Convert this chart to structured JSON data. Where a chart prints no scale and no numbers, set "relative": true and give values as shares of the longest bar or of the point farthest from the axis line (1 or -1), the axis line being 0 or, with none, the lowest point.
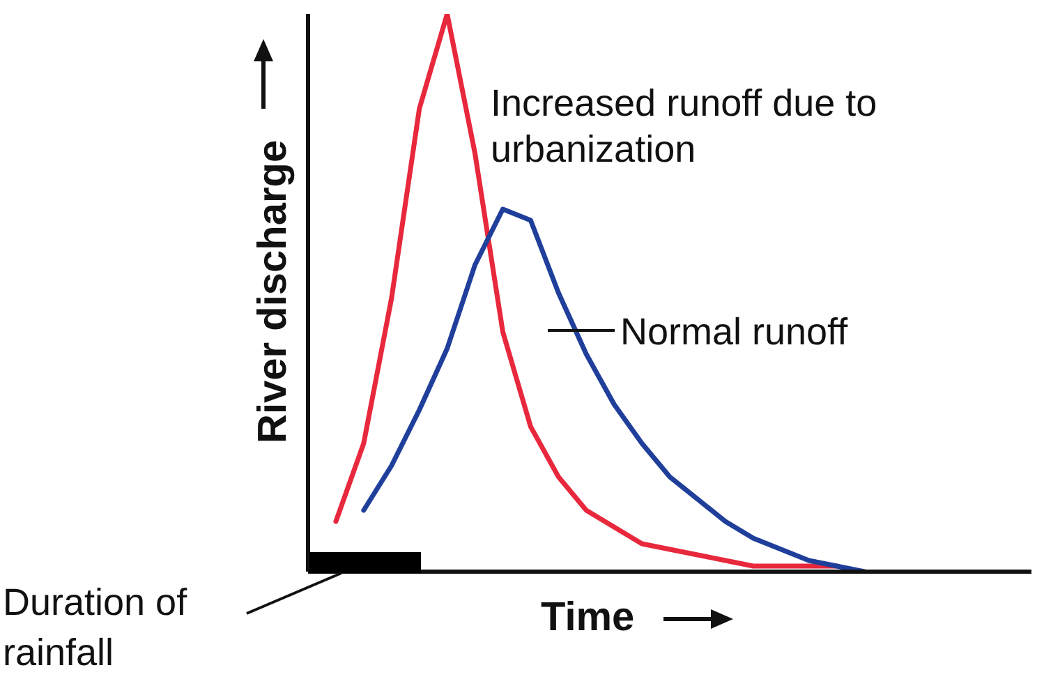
{
  "chart_data": {
    "type": "line",
    "relative": true,
    "xlabel": "Time",
    "ylabel": "River discharge",
    "categories": [
      null,
      null,
      null,
      null,
      null,
      null,
      null,
      null,
      null,
      null,
      null,
      null,
      null,
      null,
      null,
      null,
      null,
      null,
      null,
      null
    ],
    "series": [
      {
        "name": "Increased runoff due to urbanization",
        "color": "#e8283c",
        "values": [
          0.09,
          0.23,
          0.49,
          0.83,
          1.0,
          0.75,
          0.43,
          0.26,
          0.17,
          0.11,
          0.08,
          0.05,
          0.04,
          0.03,
          0.02,
          0.01,
          0.01,
          0.01,
          0.01,
          null
        ]
      },
      {
        "name": "Normal runoff",
        "color": "#1f3f9a",
        "values": [
          null,
          0.11,
          0.19,
          0.29,
          0.4,
          0.55,
          0.65,
          0.63,
          0.5,
          0.39,
          0.3,
          0.23,
          0.17,
          0.13,
          0.09,
          0.06,
          0.04,
          0.02,
          0.01,
          0.0
        ]
      }
    ],
    "annotations": [
      "Duration of rainfall"
    ],
    "grid": false,
    "legend": false,
    "marker": "none",
    "line_style": "solid"
  }
}
